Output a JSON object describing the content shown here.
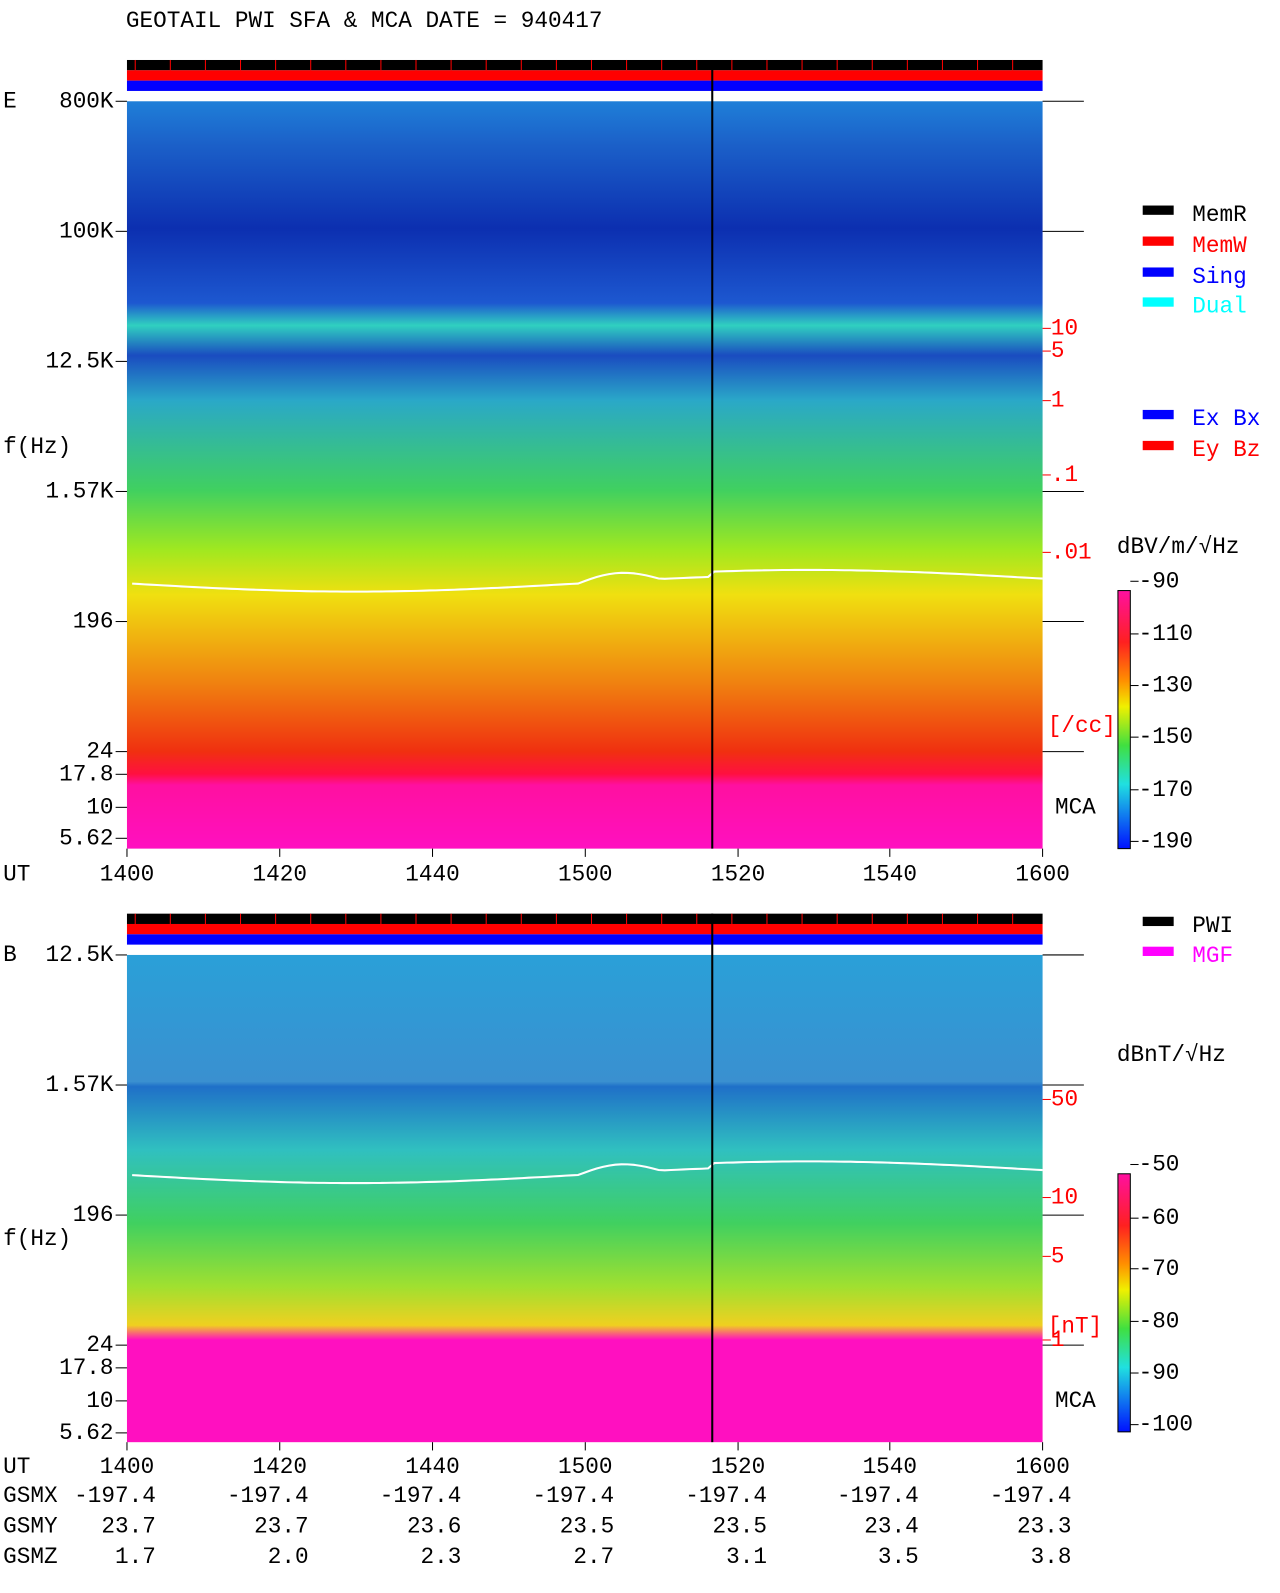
{
  "title": "GEOTAIL  PWI SFA & MCA   DATE = 940417",
  "panels": [
    {
      "label": "E",
      "y_label": "f(Hz)",
      "y_ticks": [
        "800K",
        "100K",
        "12.5K",
        "1.57K",
        "196",
        "24",
        "17.8",
        "10",
        "5.62"
      ],
      "x_label": "UT",
      "x_ticks": [
        "1400",
        "1420",
        "1440",
        "1500",
        "1520",
        "1540",
        "1600"
      ],
      "right_ticks": [
        "10",
        "5",
        "1",
        ".1",
        ".01"
      ],
      "right_unit": "[/cc]",
      "mca": "MCA",
      "colorbar_unit": "dBV/m/√Hz",
      "colorbar_ticks": [
        "-90",
        "-110",
        "-130",
        "-150",
        "-170",
        "-190"
      ]
    },
    {
      "label": "B",
      "y_label": "f(Hz)",
      "y_ticks": [
        "12.5K",
        "1.57K",
        "196",
        "24",
        "17.8",
        "10",
        "5.62"
      ],
      "x_label": "UT",
      "x_ticks": [
        "1400",
        "1420",
        "1440",
        "1500",
        "1520",
        "1540",
        "1600"
      ],
      "right_ticks": [
        "50",
        "10",
        "5",
        "1"
      ],
      "right_unit": "[nT]",
      "mca": "MCA",
      "colorbar_unit": "dBnT/√Hz",
      "colorbar_ticks": [
        "-50",
        "-60",
        "-70",
        "-80",
        "-90",
        "-100"
      ]
    }
  ],
  "legend": {
    "memory": [
      "MemR",
      "MemW",
      "Sing",
      "Dual"
    ],
    "mode": [
      "Ex Bx",
      "Ey Bz"
    ],
    "source": [
      "PWI",
      "MGF"
    ]
  },
  "orbit": [
    {
      "name": "GSMX",
      "values": [
        "-197.4",
        "-197.4",
        "-197.4",
        "-197.4",
        "-197.4",
        "-197.4",
        "-197.4"
      ]
    },
    {
      "name": "GSMY",
      "values": [
        "23.7",
        "23.7",
        "23.6",
        "23.5",
        "23.5",
        "23.4",
        "23.3"
      ]
    },
    {
      "name": "GSMZ",
      "values": [
        "1.7",
        "2.0",
        "2.3",
        "2.7",
        "3.1",
        "3.5",
        "3.8"
      ]
    }
  ]
}
